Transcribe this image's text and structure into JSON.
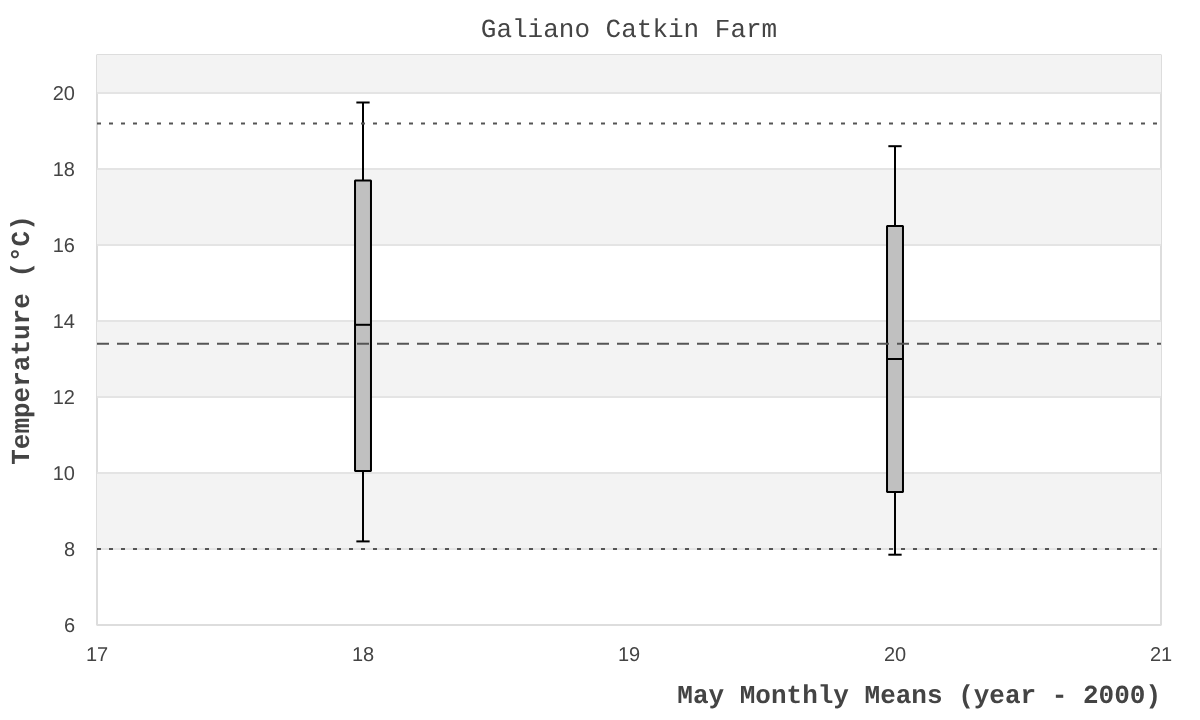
{
  "chart_data": {
    "type": "box",
    "title": "Galiano Catkin Farm",
    "xlabel": "May Monthly Means (year - 2000)",
    "ylabel": "Temperature (°C)",
    "x": [
      18,
      20
    ],
    "color": "#c0c0c0",
    "boxes": [
      {
        "low": 8.2,
        "q1": 10.05,
        "median": 13.9,
        "q3": 17.7,
        "high": 19.75
      },
      {
        "low": 7.85,
        "q1": 9.5,
        "median": 13.0,
        "q3": 16.5,
        "high": 18.6
      }
    ],
    "xlim": [
      17,
      21
    ],
    "xticks": [
      17,
      18,
      19,
      20,
      21
    ],
    "ylim": [
      6,
      21
    ],
    "yticks": [
      6,
      8,
      10,
      12,
      14,
      16,
      18,
      20
    ],
    "grid": "y",
    "ref_lines": [
      {
        "axis": "y",
        "value": 19.2,
        "line_style": "dotted"
      },
      {
        "axis": "y",
        "value": 13.4,
        "line_style": "dashed"
      },
      {
        "axis": "y",
        "value": 8.0,
        "line_style": "dotted"
      }
    ]
  }
}
